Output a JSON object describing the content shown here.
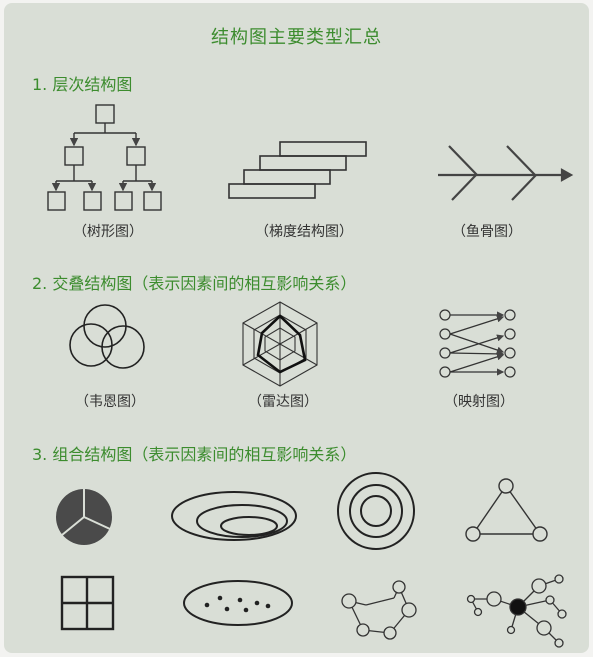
{
  "title": "结构图主要类型汇总",
  "sections": [
    {
      "heading": "1. 层次结构图",
      "items": [
        "（树形图）",
        "（梯度结构图）",
        "（鱼骨图）"
      ]
    },
    {
      "heading": "2. 交叠结构图（表示因素间的相互影响关系）",
      "items": [
        "（韦恩图）",
        "（雷达图）",
        "（映射图）"
      ]
    },
    {
      "heading": "3. 组合结构图（表示因素间的相互影响关系）",
      "items": []
    }
  ],
  "colors": {
    "heading": "#3c8c2e",
    "background": "#d9ded6",
    "ink": "#333333"
  }
}
